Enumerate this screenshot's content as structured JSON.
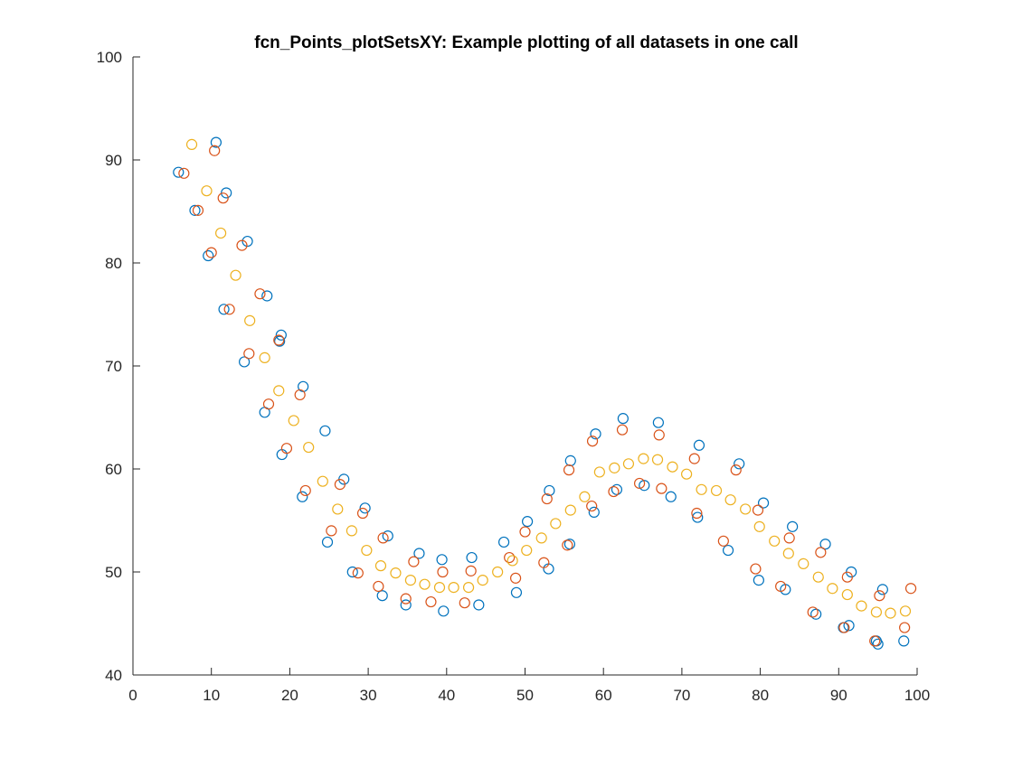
{
  "chart_data": {
    "type": "scatter",
    "title": "fcn_Points_plotSetsXY: Example plotting of all datasets in one call",
    "xlabel": "",
    "ylabel": "",
    "xlim": [
      0,
      100
    ],
    "ylim": [
      40,
      100
    ],
    "xticks": [
      0,
      10,
      20,
      30,
      40,
      50,
      60,
      70,
      80,
      90,
      100
    ],
    "yticks": [
      40,
      50,
      60,
      70,
      80,
      90,
      100
    ],
    "grid": false,
    "marker": "circle",
    "series": [
      {
        "color": "#0072BD",
        "x": [
          5.8,
          7.9,
          9.6,
          10.6,
          11.6,
          11.9,
          14.2,
          14.6,
          16.8,
          17.1,
          18.7,
          18.9,
          19.0,
          21.6,
          21.7,
          24.5,
          24.8,
          26.9,
          28.0,
          29.6,
          31.8,
          32.5,
          34.8,
          36.5,
          39.4,
          39.6,
          43.2,
          44.1,
          47.3,
          48.9,
          50.3,
          53.0,
          53.1,
          55.7,
          55.8,
          58.8,
          59.0,
          61.7,
          62.5,
          65.2,
          67.0,
          68.6,
          72.0,
          72.2,
          75.9,
          77.3,
          79.8,
          80.4,
          83.2,
          84.1,
          87.1,
          88.3,
          90.6,
          91.3,
          91.6,
          94.8,
          95.0,
          95.6,
          98.3
        ],
        "y": [
          88.8,
          85.1,
          80.7,
          91.7,
          75.5,
          86.8,
          70.4,
          82.1,
          65.5,
          76.8,
          72.4,
          73.0,
          61.4,
          57.3,
          68.0,
          63.7,
          52.9,
          59.0,
          50.0,
          56.2,
          47.7,
          53.5,
          46.8,
          51.8,
          51.2,
          46.2,
          51.4,
          46.8,
          52.9,
          48.0,
          54.9,
          50.3,
          57.9,
          52.7,
          60.8,
          55.8,
          63.4,
          58.0,
          64.9,
          58.4,
          64.5,
          57.3,
          55.3,
          62.3,
          52.1,
          60.5,
          49.2,
          56.7,
          48.3,
          54.4,
          45.9,
          52.7,
          44.6,
          44.8,
          50.0,
          43.3,
          43.0,
          48.3,
          43.3
        ]
      },
      {
        "color": "#D95319",
        "x": [
          6.5,
          8.3,
          10.0,
          10.4,
          11.5,
          12.3,
          13.9,
          14.8,
          16.2,
          17.3,
          18.6,
          19.6,
          21.3,
          22.0,
          25.3,
          26.4,
          28.7,
          29.3,
          31.3,
          31.9,
          34.8,
          35.8,
          38.0,
          39.5,
          42.3,
          43.1,
          48.0,
          48.8,
          50.0,
          52.4,
          52.8,
          55.4,
          55.6,
          58.5,
          58.6,
          61.3,
          62.4,
          64.6,
          67.1,
          67.4,
          71.6,
          71.9,
          75.3,
          76.9,
          79.4,
          79.7,
          82.6,
          83.7,
          86.7,
          87.7,
          90.7,
          91.1,
          94.6,
          95.2,
          98.4,
          99.2
        ],
        "y": [
          88.7,
          85.1,
          81.0,
          90.9,
          86.3,
          75.5,
          81.7,
          71.2,
          77.0,
          66.3,
          72.5,
          62.0,
          67.2,
          57.9,
          54.0,
          58.5,
          49.9,
          55.7,
          48.6,
          53.3,
          47.4,
          51.0,
          47.1,
          50.0,
          47.0,
          50.1,
          51.4,
          49.4,
          53.9,
          50.9,
          57.1,
          52.6,
          59.9,
          56.4,
          62.7,
          57.8,
          63.8,
          58.6,
          63.3,
          58.1,
          61.0,
          55.7,
          53.0,
          59.9,
          50.3,
          56.0,
          48.6,
          53.3,
          46.1,
          51.9,
          44.6,
          49.5,
          43.3,
          47.7,
          44.6,
          48.4
        ]
      },
      {
        "color": "#EDB120",
        "x": [
          7.5,
          9.4,
          11.2,
          13.1,
          14.9,
          16.8,
          18.6,
          20.5,
          22.4,
          24.2,
          26.1,
          27.9,
          29.8,
          31.6,
          33.5,
          35.4,
          37.2,
          39.1,
          40.9,
          42.8,
          44.6,
          46.5,
          48.4,
          50.2,
          52.1,
          53.9,
          55.8,
          57.6,
          59.5,
          61.4,
          63.2,
          65.1,
          66.9,
          68.8,
          70.6,
          72.5,
          74.4,
          76.2,
          78.1,
          79.9,
          81.8,
          83.6,
          85.5,
          87.4,
          89.2,
          91.1,
          92.9,
          94.8,
          96.6,
          98.5
        ],
        "y": [
          91.5,
          87.0,
          82.9,
          78.8,
          74.4,
          70.8,
          67.6,
          64.7,
          62.1,
          58.8,
          56.1,
          54.0,
          52.1,
          50.6,
          49.9,
          49.2,
          48.8,
          48.5,
          48.5,
          48.5,
          49.2,
          50.0,
          51.1,
          52.1,
          53.3,
          54.7,
          56.0,
          57.3,
          59.7,
          60.1,
          60.5,
          61.0,
          60.9,
          60.2,
          59.5,
          58.0,
          57.9,
          57.0,
          56.1,
          54.4,
          53.0,
          51.8,
          50.8,
          49.5,
          48.4,
          47.8,
          46.7,
          46.1,
          46.0,
          46.2
        ]
      }
    ]
  }
}
